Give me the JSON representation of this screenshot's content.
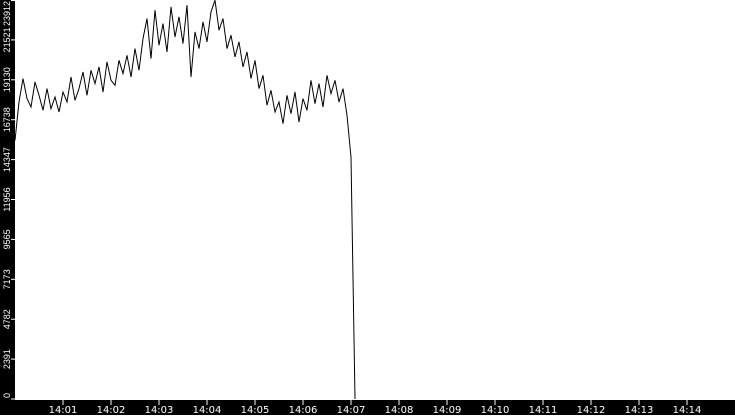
{
  "chart_data": {
    "type": "line",
    "title": "",
    "xlabel": "",
    "ylabel": "",
    "grid": false,
    "background": "#ffffff",
    "axis_color": "#000000",
    "line_color": "#000000",
    "xlim": [
      "14:00:00",
      "14:15:00"
    ],
    "ylim": [
      0,
      23912
    ],
    "yticks": [
      0,
      2391,
      4782,
      7173,
      9565,
      11956,
      14347,
      16738,
      19130,
      21521,
      23912
    ],
    "xticks": [
      "14:01",
      "14:02",
      "14:03",
      "14:04",
      "14:05",
      "14:06",
      "14:07",
      "14:08",
      "14:09",
      "14:10",
      "14:11",
      "14:12",
      "14:13",
      "14:14"
    ],
    "sample_interval_seconds": 5,
    "series": [
      {
        "start": "14:00:00",
        "values": [
          15500,
          17800,
          19200,
          18000,
          17500,
          19000,
          18200,
          17300,
          18600,
          17400,
          18100,
          17200,
          18400,
          17800,
          19300,
          17900,
          18600,
          19600,
          18200,
          19700,
          18900,
          19900,
          18400,
          20200,
          19100,
          18800,
          20300,
          19500,
          20600,
          19300,
          21000,
          19700,
          21600,
          22800,
          20400,
          23300,
          21200,
          22500,
          20800,
          23500,
          21700,
          22900,
          21300,
          23600,
          19300,
          22000,
          21000,
          22600,
          21400,
          23200,
          23900,
          22100,
          22800,
          21000,
          21800,
          20500,
          21400,
          19900,
          20800,
          19200,
          20300,
          18600,
          19400,
          17600,
          18500,
          17200,
          17800,
          16500,
          18200,
          17100,
          18400,
          16600,
          18000,
          17300,
          19100,
          17700,
          18900,
          17500,
          19400,
          18300,
          19100,
          17800,
          18600,
          17000,
          14500,
          0
        ]
      }
    ]
  }
}
